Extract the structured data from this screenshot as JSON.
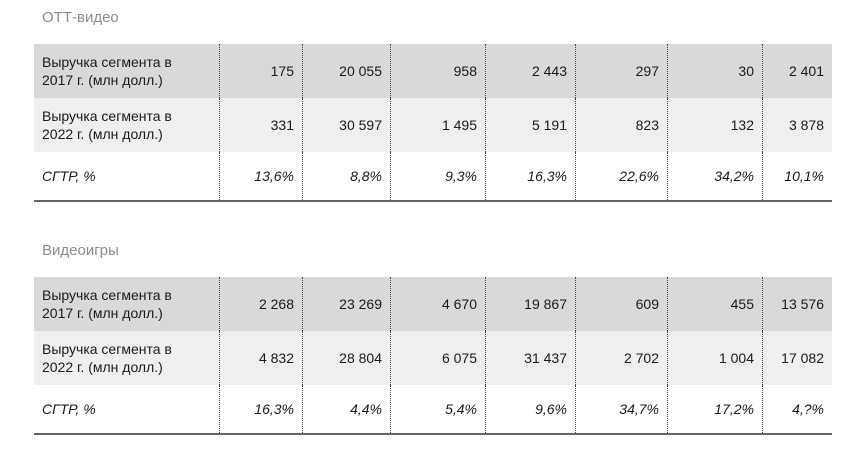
{
  "sections": [
    {
      "title": "ОТТ-видео",
      "rows": [
        [
          "Выручка сегмента в 2017 г. (млн долл.)",
          "175",
          "20 055",
          "958",
          "2 443",
          "297",
          "30",
          "2 401"
        ],
        [
          "Выручка сегмента в 2022 г. (млн долл.)",
          "331",
          "30 597",
          "1 495",
          "5 191",
          "823",
          "132",
          "3 878"
        ],
        [
          "CГТР, %",
          "13,6%",
          "8,8%",
          "9,3%",
          "16,3%",
          "22,6%",
          "34,2%",
          "10,1%"
        ]
      ]
    },
    {
      "title": "Видеоигры",
      "rows": [
        [
          "Выручка сегмента в 2017 г. (млн долл.)",
          "2 268",
          "23 269",
          "4 670",
          "19 867",
          "609",
          "455",
          "13 576"
        ],
        [
          "Выручка сегмента в 2022 г. (млн долл.)",
          "4 832",
          "28 804",
          "6 075",
          "31 437",
          "2 702",
          "1 004",
          "17 082"
        ],
        [
          "CГТР, %",
          "16,3%",
          "4,4%",
          "5,4%",
          "9,6%",
          "34,7%",
          "17,2%",
          "4,?%"
        ]
      ]
    }
  ]
}
